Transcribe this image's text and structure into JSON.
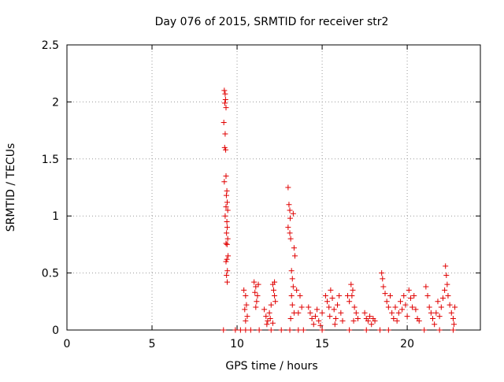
{
  "chart_data": {
    "type": "scatter",
    "title": "Day 076 of 2015, SRMTID for receiver str2",
    "xlabel": "GPS time / hours",
    "ylabel": "SRMTID / TECUs",
    "xlim": [
      0,
      24.3
    ],
    "ylim": [
      0,
      2.5
    ],
    "x_ticks": [
      0,
      5,
      10,
      15,
      20
    ],
    "y_ticks": [
      0,
      0.5,
      1,
      1.5,
      2,
      2.5
    ],
    "x_tick_labels": [
      "0",
      "5",
      "10",
      "15",
      "20"
    ],
    "y_tick_labels": [
      "0",
      "0.5",
      "1",
      "1.5",
      "2",
      "2.5"
    ],
    "grid": true,
    "marker": "+",
    "color": "#e00000",
    "series": [
      {
        "name": "str2",
        "points": [
          [
            9.2,
            0.0
          ],
          [
            9.9,
            0.0
          ],
          [
            10.2,
            0.0
          ],
          [
            10.5,
            0.0
          ],
          [
            10.8,
            0.0
          ],
          [
            11.3,
            0.0
          ],
          [
            12.0,
            0.0
          ],
          [
            12.6,
            0.0
          ],
          [
            13.1,
            0.0
          ],
          [
            13.6,
            0.0
          ],
          [
            13.9,
            0.0
          ],
          [
            15.0,
            0.0
          ],
          [
            16.6,
            0.0
          ],
          [
            17.6,
            0.0
          ],
          [
            18.4,
            0.0
          ],
          [
            18.9,
            0.0
          ],
          [
            21.0,
            0.0
          ],
          [
            21.9,
            0.0
          ],
          [
            22.7,
            0.0
          ],
          [
            9.25,
            2.1
          ],
          [
            9.3,
            2.07
          ],
          [
            9.32,
            2.02
          ],
          [
            9.28,
            1.99
          ],
          [
            9.35,
            1.95
          ],
          [
            9.22,
            1.82
          ],
          [
            9.3,
            1.72
          ],
          [
            9.27,
            1.6
          ],
          [
            9.33,
            1.58
          ],
          [
            9.35,
            1.35
          ],
          [
            9.25,
            1.3
          ],
          [
            9.4,
            1.22
          ],
          [
            9.37,
            1.18
          ],
          [
            9.42,
            1.12
          ],
          [
            9.35,
            1.08
          ],
          [
            9.45,
            1.05
          ],
          [
            9.3,
            1.0
          ],
          [
            9.4,
            0.95
          ],
          [
            9.42,
            0.9
          ],
          [
            9.38,
            0.85
          ],
          [
            9.45,
            0.8
          ],
          [
            9.35,
            0.76
          ],
          [
            9.41,
            0.75
          ],
          [
            9.47,
            0.65
          ],
          [
            9.4,
            0.62
          ],
          [
            9.35,
            0.6
          ],
          [
            9.43,
            0.52
          ],
          [
            9.38,
            0.48
          ],
          [
            9.42,
            0.42
          ],
          [
            10.4,
            0.35
          ],
          [
            10.5,
            0.3
          ],
          [
            10.55,
            0.22
          ],
          [
            10.45,
            0.18
          ],
          [
            10.6,
            0.12
          ],
          [
            10.5,
            0.08
          ],
          [
            11.0,
            0.42
          ],
          [
            11.1,
            0.38
          ],
          [
            11.05,
            0.33
          ],
          [
            11.2,
            0.3
          ],
          [
            11.15,
            0.25
          ],
          [
            11.25,
            0.4
          ],
          [
            11.1,
            0.2
          ],
          [
            11.6,
            0.18
          ],
          [
            11.7,
            0.12
          ],
          [
            11.8,
            0.08
          ],
          [
            11.9,
            0.15
          ],
          [
            12.0,
            0.22
          ],
          [
            11.75,
            0.05
          ],
          [
            11.95,
            0.1
          ],
          [
            12.1,
            0.06
          ],
          [
            12.1,
            0.4
          ],
          [
            12.15,
            0.35
          ],
          [
            12.2,
            0.3
          ],
          [
            12.25,
            0.25
          ],
          [
            12.2,
            0.42
          ],
          [
            13.0,
            1.25
          ],
          [
            13.05,
            1.1
          ],
          [
            13.1,
            1.05
          ],
          [
            13.12,
            0.98
          ],
          [
            13.0,
            0.9
          ],
          [
            13.1,
            0.85
          ],
          [
            13.15,
            0.8
          ],
          [
            13.3,
            1.02
          ],
          [
            13.35,
            0.72
          ],
          [
            13.4,
            0.65
          ],
          [
            13.2,
            0.52
          ],
          [
            13.25,
            0.45
          ],
          [
            13.3,
            0.38
          ],
          [
            13.2,
            0.3
          ],
          [
            13.25,
            0.22
          ],
          [
            13.35,
            0.15
          ],
          [
            13.15,
            0.1
          ],
          [
            13.5,
            0.35
          ],
          [
            13.7,
            0.3
          ],
          [
            13.8,
            0.2
          ],
          [
            13.6,
            0.15
          ],
          [
            14.2,
            0.2
          ],
          [
            14.3,
            0.15
          ],
          [
            14.4,
            0.1
          ],
          [
            14.5,
            0.05
          ],
          [
            14.6,
            0.12
          ],
          [
            14.7,
            0.18
          ],
          [
            14.8,
            0.08
          ],
          [
            14.9,
            0.04
          ],
          [
            15.0,
            0.15
          ],
          [
            15.2,
            0.3
          ],
          [
            15.3,
            0.25
          ],
          [
            15.4,
            0.2
          ],
          [
            15.5,
            0.35
          ],
          [
            15.6,
            0.28
          ],
          [
            15.7,
            0.18
          ],
          [
            15.8,
            0.1
          ],
          [
            15.9,
            0.22
          ],
          [
            16.0,
            0.3
          ],
          [
            16.1,
            0.15
          ],
          [
            16.2,
            0.08
          ],
          [
            15.45,
            0.12
          ],
          [
            15.75,
            0.05
          ],
          [
            16.5,
            0.3
          ],
          [
            16.6,
            0.25
          ],
          [
            16.7,
            0.4
          ],
          [
            16.8,
            0.35
          ],
          [
            16.9,
            0.2
          ],
          [
            17.0,
            0.15
          ],
          [
            17.1,
            0.1
          ],
          [
            16.75,
            0.3
          ],
          [
            16.85,
            0.08
          ],
          [
            17.5,
            0.15
          ],
          [
            17.6,
            0.1
          ],
          [
            17.7,
            0.08
          ],
          [
            17.8,
            0.12
          ],
          [
            17.9,
            0.05
          ],
          [
            18.0,
            0.1
          ],
          [
            18.1,
            0.08
          ],
          [
            18.5,
            0.5
          ],
          [
            18.55,
            0.45
          ],
          [
            18.6,
            0.38
          ],
          [
            18.7,
            0.32
          ],
          [
            18.8,
            0.25
          ],
          [
            18.9,
            0.2
          ],
          [
            19.0,
            0.3
          ],
          [
            19.1,
            0.15
          ],
          [
            19.2,
            0.1
          ],
          [
            19.3,
            0.2
          ],
          [
            19.4,
            0.08
          ],
          [
            19.5,
            0.15
          ],
          [
            19.6,
            0.25
          ],
          [
            19.7,
            0.18
          ],
          [
            19.8,
            0.3
          ],
          [
            19.9,
            0.22
          ],
          [
            20.0,
            0.12
          ],
          [
            20.1,
            0.35
          ],
          [
            20.2,
            0.28
          ],
          [
            20.3,
            0.2
          ],
          [
            20.4,
            0.3
          ],
          [
            20.5,
            0.18
          ],
          [
            20.6,
            0.1
          ],
          [
            20.7,
            0.08
          ],
          [
            21.1,
            0.38
          ],
          [
            21.2,
            0.3
          ],
          [
            21.3,
            0.2
          ],
          [
            21.4,
            0.15
          ],
          [
            21.5,
            0.1
          ],
          [
            21.6,
            0.05
          ],
          [
            21.7,
            0.15
          ],
          [
            21.8,
            0.25
          ],
          [
            21.9,
            0.12
          ],
          [
            22.0,
            0.2
          ],
          [
            22.1,
            0.28
          ],
          [
            22.2,
            0.35
          ],
          [
            22.25,
            0.56
          ],
          [
            22.3,
            0.48
          ],
          [
            22.35,
            0.4
          ],
          [
            22.4,
            0.3
          ],
          [
            22.5,
            0.22
          ],
          [
            22.6,
            0.15
          ],
          [
            22.7,
            0.1
          ],
          [
            22.8,
            0.2
          ],
          [
            22.75,
            0.05
          ]
        ]
      }
    ]
  }
}
